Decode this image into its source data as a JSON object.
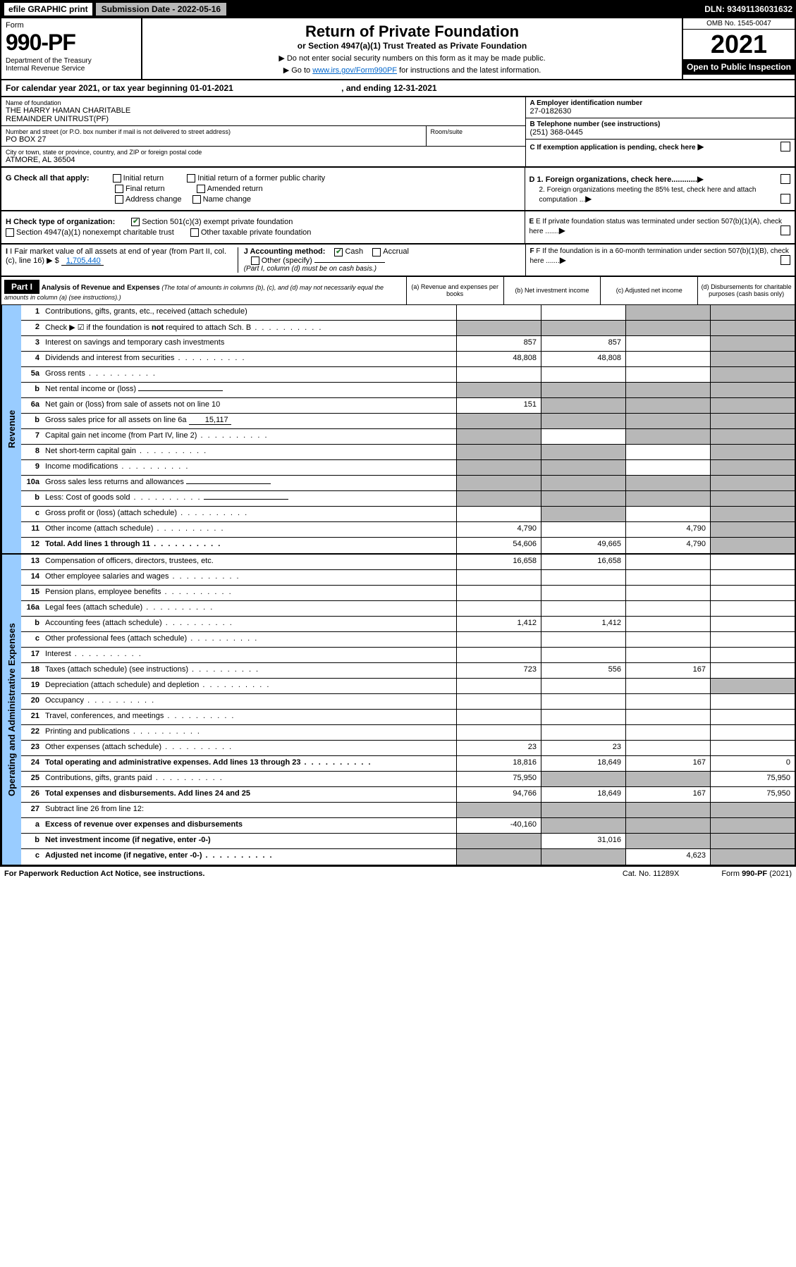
{
  "topbar": {
    "efile": "efile GRAPHIC print",
    "submission": "Submission Date - 2022-05-16",
    "dln": "DLN: 93491136031632"
  },
  "header": {
    "form_label": "Form",
    "form_num": "990-PF",
    "dept": "Department of the Treasury\nInternal Revenue Service",
    "title": "Return of Private Foundation",
    "subtitle": "or Section 4947(a)(1) Trust Treated as Private Foundation",
    "note1": "▶ Do not enter social security numbers on this form as it may be made public.",
    "note2_prefix": "▶ Go to ",
    "note2_link": "www.irs.gov/Form990PF",
    "note2_suffix": " for instructions and the latest information.",
    "omb": "OMB No. 1545-0047",
    "year": "2021",
    "open": "Open to Public Inspection"
  },
  "calendar": {
    "text": "For calendar year 2021, or tax year beginning 01-01-2021",
    "ending": ", and ending 12-31-2021"
  },
  "foundation": {
    "name_label": "Name of foundation",
    "name": "THE HARRY HAMAN CHARITABLE\nREMAINDER UNITRUST(PF)",
    "addr_label": "Number and street (or P.O. box number if mail is not delivered to street address)",
    "addr": "PO BOX 27",
    "room_label": "Room/suite",
    "city_label": "City or town, state or province, country, and ZIP or foreign postal code",
    "city": "ATMORE, AL  36504",
    "ein_label": "A Employer identification number",
    "ein": "27-0182630",
    "phone_label": "B Telephone number (see instructions)",
    "phone": "(251) 368-0445",
    "c_label": "C If exemption application is pending, check here"
  },
  "checks": {
    "g_label": "G Check all that apply:",
    "g_initial": "Initial return",
    "g_initial_public": "Initial return of a former public charity",
    "g_final": "Final return",
    "g_amended": "Amended return",
    "g_address": "Address change",
    "g_name": "Name change",
    "h_label": "H Check type of organization:",
    "h_501c3": "Section 501(c)(3) exempt private foundation",
    "h_4947": "Section 4947(a)(1) nonexempt charitable trust",
    "h_other": "Other taxable private foundation",
    "i_label": "I Fair market value of all assets at end of year (from Part II, col. (c), line 16) ▶ $",
    "i_value": "1,705,440",
    "j_label": "J Accounting method:",
    "j_cash": "Cash",
    "j_accrual": "Accrual",
    "j_other": "Other (specify)",
    "j_note": "(Part I, column (d) must be on cash basis.)",
    "d1": "D 1. Foreign organizations, check here............",
    "d2": "2. Foreign organizations meeting the 85% test, check here and attach computation ...",
    "e_label": "E  If private foundation status was terminated under section 507(b)(1)(A), check here .......",
    "f_label": "F  If the foundation is in a 60-month termination under section 507(b)(1)(B), check here ......."
  },
  "part1": {
    "label": "Part I",
    "title": "Analysis of Revenue and Expenses",
    "title_note": "(The total of amounts in columns (b), (c), and (d) may not necessarily equal the amounts in column (a) (see instructions).)",
    "col_a": "(a)  Revenue and expenses per books",
    "col_b": "(b)  Net investment income",
    "col_c": "(c)  Adjusted net income",
    "col_d": "(d)  Disbursements for charitable purposes (cash basis only)",
    "side_revenue": "Revenue",
    "side_expenses": "Operating and Administrative Expenses"
  },
  "rows": [
    {
      "n": "1",
      "d": "Contributions, gifts, grants, etc., received (attach schedule)",
      "a": "",
      "b": "",
      "c": "shade",
      "dcol": "shade"
    },
    {
      "n": "2",
      "d": "Check ▶ ☑ if the foundation is not required to attach Sch. B",
      "dots": true,
      "a": "shade",
      "b": "shade",
      "c": "shade",
      "dcol": "shade",
      "bold_not": true
    },
    {
      "n": "3",
      "d": "Interest on savings and temporary cash investments",
      "a": "857",
      "b": "857",
      "c": "",
      "dcol": "shade"
    },
    {
      "n": "4",
      "d": "Dividends and interest from securities",
      "dots": true,
      "a": "48,808",
      "b": "48,808",
      "c": "",
      "dcol": "shade"
    },
    {
      "n": "5a",
      "d": "Gross rents",
      "dots": true,
      "a": "",
      "b": "",
      "c": "",
      "dcol": "shade"
    },
    {
      "n": "b",
      "d": "Net rental income or (loss)",
      "a": "shade",
      "b": "shade",
      "c": "shade",
      "dcol": "shade",
      "inline": true
    },
    {
      "n": "6a",
      "d": "Net gain or (loss) from sale of assets not on line 10",
      "a": "151",
      "b": "shade",
      "c": "shade",
      "dcol": "shade"
    },
    {
      "n": "b",
      "d": "Gross sales price for all assets on line 6a",
      "a": "shade",
      "b": "shade",
      "c": "shade",
      "dcol": "shade",
      "inline_val": "15,117"
    },
    {
      "n": "7",
      "d": "Capital gain net income (from Part IV, line 2)",
      "dots": true,
      "a": "shade",
      "b": "",
      "c": "shade",
      "dcol": "shade"
    },
    {
      "n": "8",
      "d": "Net short-term capital gain",
      "dots": true,
      "a": "shade",
      "b": "shade",
      "c": "",
      "dcol": "shade"
    },
    {
      "n": "9",
      "d": "Income modifications",
      "dots": true,
      "a": "shade",
      "b": "shade",
      "c": "",
      "dcol": "shade"
    },
    {
      "n": "10a",
      "d": "Gross sales less returns and allowances",
      "a": "shade",
      "b": "shade",
      "c": "shade",
      "dcol": "shade",
      "inline": true
    },
    {
      "n": "b",
      "d": "Less: Cost of goods sold",
      "dots": true,
      "a": "shade",
      "b": "shade",
      "c": "shade",
      "dcol": "shade",
      "inline": true
    },
    {
      "n": "c",
      "d": "Gross profit or (loss) (attach schedule)",
      "dots": true,
      "a": "",
      "b": "shade",
      "c": "",
      "dcol": "shade"
    },
    {
      "n": "11",
      "d": "Other income (attach schedule)",
      "dots": true,
      "a": "4,790",
      "b": "",
      "c": "4,790",
      "dcol": "shade"
    },
    {
      "n": "12",
      "d": "Total. Add lines 1 through 11",
      "dots": true,
      "bold": true,
      "a": "54,606",
      "b": "49,665",
      "c": "4,790",
      "dcol": "shade"
    }
  ],
  "exp_rows": [
    {
      "n": "13",
      "d": "Compensation of officers, directors, trustees, etc.",
      "a": "16,658",
      "b": "16,658",
      "c": "",
      "dcol": ""
    },
    {
      "n": "14",
      "d": "Other employee salaries and wages",
      "dots": true,
      "a": "",
      "b": "",
      "c": "",
      "dcol": ""
    },
    {
      "n": "15",
      "d": "Pension plans, employee benefits",
      "dots": true,
      "a": "",
      "b": "",
      "c": "",
      "dcol": ""
    },
    {
      "n": "16a",
      "d": "Legal fees (attach schedule)",
      "dots": true,
      "a": "",
      "b": "",
      "c": "",
      "dcol": ""
    },
    {
      "n": "b",
      "d": "Accounting fees (attach schedule)",
      "dots": true,
      "a": "1,412",
      "b": "1,412",
      "c": "",
      "dcol": ""
    },
    {
      "n": "c",
      "d": "Other professional fees (attach schedule)",
      "dots": true,
      "a": "",
      "b": "",
      "c": "",
      "dcol": ""
    },
    {
      "n": "17",
      "d": "Interest",
      "dots": true,
      "a": "",
      "b": "",
      "c": "",
      "dcol": ""
    },
    {
      "n": "18",
      "d": "Taxes (attach schedule) (see instructions)",
      "dots": true,
      "a": "723",
      "b": "556",
      "c": "167",
      "dcol": ""
    },
    {
      "n": "19",
      "d": "Depreciation (attach schedule) and depletion",
      "dots": true,
      "a": "",
      "b": "",
      "c": "",
      "dcol": "shade"
    },
    {
      "n": "20",
      "d": "Occupancy",
      "dots": true,
      "a": "",
      "b": "",
      "c": "",
      "dcol": ""
    },
    {
      "n": "21",
      "d": "Travel, conferences, and meetings",
      "dots": true,
      "a": "",
      "b": "",
      "c": "",
      "dcol": ""
    },
    {
      "n": "22",
      "d": "Printing and publications",
      "dots": true,
      "a": "",
      "b": "",
      "c": "",
      "dcol": ""
    },
    {
      "n": "23",
      "d": "Other expenses (attach schedule)",
      "dots": true,
      "a": "23",
      "b": "23",
      "c": "",
      "dcol": ""
    },
    {
      "n": "24",
      "d": "Total operating and administrative expenses. Add lines 13 through 23",
      "dots": true,
      "bold": true,
      "a": "18,816",
      "b": "18,649",
      "c": "167",
      "dcol": "0"
    },
    {
      "n": "25",
      "d": "Contributions, gifts, grants paid",
      "dots": true,
      "a": "75,950",
      "b": "shade",
      "c": "shade",
      "dcol": "75,950"
    },
    {
      "n": "26",
      "d": "Total expenses and disbursements. Add lines 24 and 25",
      "bold": true,
      "a": "94,766",
      "b": "18,649",
      "c": "167",
      "dcol": "75,950"
    },
    {
      "n": "27",
      "d": "Subtract line 26 from line 12:",
      "a": "shade",
      "b": "shade",
      "c": "shade",
      "dcol": "shade"
    },
    {
      "n": "a",
      "d": "Excess of revenue over expenses and disbursements",
      "bold": true,
      "a": "-40,160",
      "b": "shade",
      "c": "shade",
      "dcol": "shade"
    },
    {
      "n": "b",
      "d": "Net investment income (if negative, enter -0-)",
      "bold": true,
      "a": "shade",
      "b": "31,016",
      "c": "shade",
      "dcol": "shade"
    },
    {
      "n": "c",
      "d": "Adjusted net income (if negative, enter -0-)",
      "dots": true,
      "bold": true,
      "a": "shade",
      "b": "shade",
      "c": "4,623",
      "dcol": "shade"
    }
  ],
  "footer": {
    "left": "For Paperwork Reduction Act Notice, see instructions.",
    "mid": "Cat. No. 11289X",
    "right": "Form 990-PF (2021)"
  }
}
